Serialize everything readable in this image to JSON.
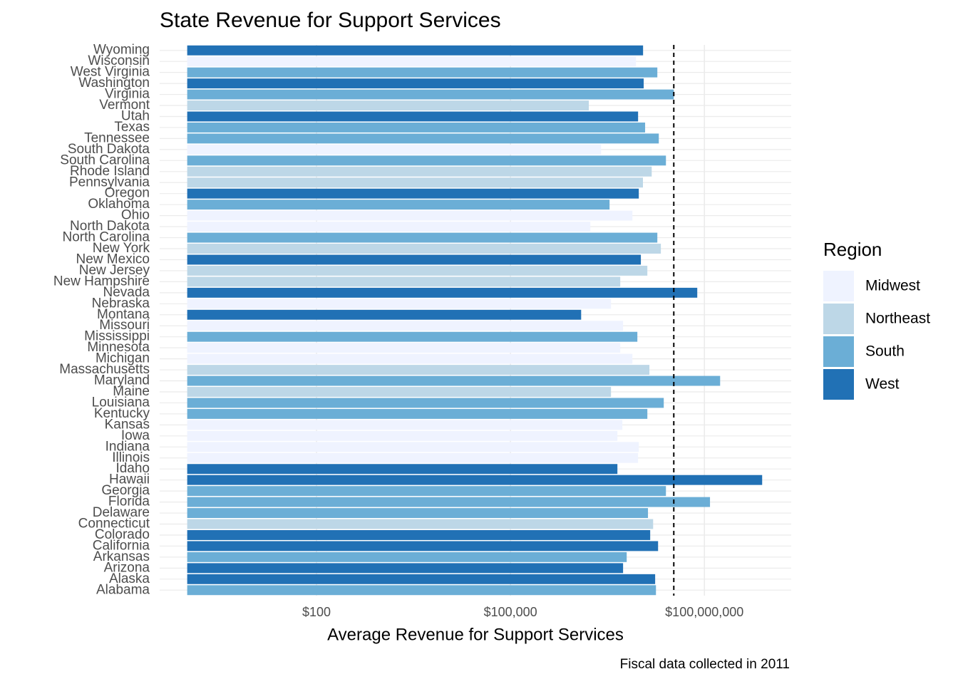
{
  "chart_data": {
    "type": "bar",
    "orientation": "horizontal",
    "title": "State Revenue for Support Services",
    "x_label": "Average Revenue for Support Services",
    "caption": "Fiscal data collected in 2011",
    "log_x": true,
    "grid": true,
    "xlim": [
      0.375,
      2200000000
    ],
    "xticks": [
      {
        "value": 100,
        "label": "$100"
      },
      {
        "value": 100000,
        "label": "$100,000"
      },
      {
        "value": 100000000,
        "label": "$100,000,000"
      }
    ],
    "reference_line": 33600000,
    "legend": {
      "title": "Region",
      "position": "right",
      "entries": [
        {
          "name": "Midwest",
          "color": "#eff3ff"
        },
        {
          "name": "Northeast",
          "color": "#bdd7e7"
        },
        {
          "name": "South",
          "color": "#6baed6"
        },
        {
          "name": "West",
          "color": "#2171b5"
        }
      ]
    },
    "categories": [
      "Alabama",
      "Alaska",
      "Arizona",
      "Arkansas",
      "California",
      "Colorado",
      "Connecticut",
      "Delaware",
      "Florida",
      "Georgia",
      "Hawaii",
      "Idaho",
      "Illinois",
      "Indiana",
      "Iowa",
      "Kansas",
      "Kentucky",
      "Louisiana",
      "Maine",
      "Maryland",
      "Massachusetts",
      "Michigan",
      "Minnesota",
      "Mississippi",
      "Missouri",
      "Montana",
      "Nebraska",
      "Nevada",
      "New Hampshire",
      "New Jersey",
      "New Mexico",
      "New York",
      "North Carolina",
      "North Dakota",
      "Ohio",
      "Oklahoma",
      "Oregon",
      "Pennsylvania",
      "Rhode Island",
      "South Carolina",
      "South Dakota",
      "Tennessee",
      "Texas",
      "Utah",
      "Vermont",
      "Virginia",
      "Washington",
      "West Virginia",
      "Wisconsin",
      "Wyoming"
    ],
    "regions": [
      "South",
      "West",
      "West",
      "South",
      "West",
      "West",
      "Northeast",
      "South",
      "South",
      "South",
      "West",
      "West",
      "Midwest",
      "Midwest",
      "Midwest",
      "Midwest",
      "South",
      "South",
      "Northeast",
      "South",
      "Northeast",
      "Midwest",
      "Midwest",
      "South",
      "Midwest",
      "West",
      "Midwest",
      "West",
      "Northeast",
      "Northeast",
      "West",
      "Northeast",
      "South",
      "Midwest",
      "Midwest",
      "South",
      "West",
      "Northeast",
      "Northeast",
      "South",
      "Midwest",
      "South",
      "South",
      "West",
      "Northeast",
      "South",
      "West",
      "South",
      "Midwest",
      "West"
    ],
    "values": [
      17800000,
      17300000,
      5520000,
      6280000,
      19200000,
      14500000,
      16100000,
      13400000,
      122000000,
      25400000,
      782000000,
      4510000,
      9420000,
      9660000,
      4510000,
      5380000,
      13100000,
      23500000,
      3590000,
      175000000,
      14100000,
      7690000,
      4990000,
      9180000,
      5520000,
      1240000,
      3590000,
      77500000,
      4990000,
      13100000,
      10400000,
      21200000,
      18700000,
      1720000,
      7690000,
      3410000,
      9660000,
      11200000,
      15300000,
      25400000,
      2520000,
      19700000,
      12100000,
      9420000,
      1630000,
      33600000,
      11500000,
      18700000,
      8730000,
      11250000
    ]
  }
}
